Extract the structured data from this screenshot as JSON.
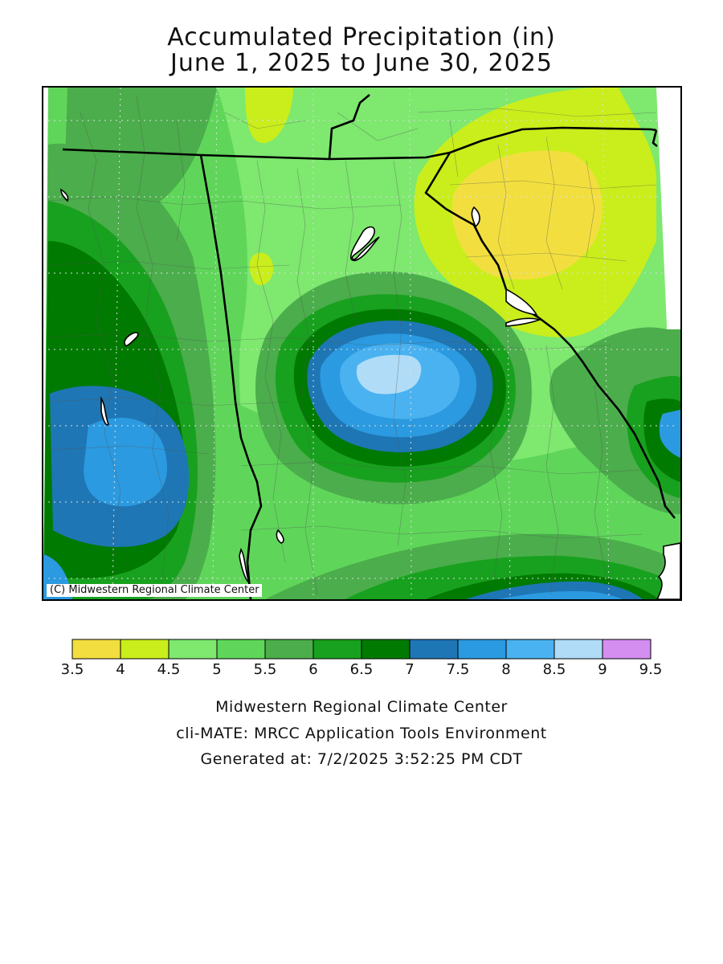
{
  "title": {
    "line1": "Accumulated Precipitation (in)",
    "line2": "June 1, 2025 to June 30, 2025"
  },
  "map": {
    "credit": "(C) Midwestern Regional Climate Center",
    "units": "in"
  },
  "legend": {
    "ticks": [
      "3.5",
      "4",
      "4.5",
      "5",
      "5.5",
      "6",
      "6.5",
      "7",
      "7.5",
      "8",
      "8.5",
      "9",
      "9.5"
    ],
    "bins": [
      {
        "from": 3.5,
        "to": 4.0,
        "color": "#f2df3f"
      },
      {
        "from": 4.0,
        "to": 4.5,
        "color": "#c9ee1c"
      },
      {
        "from": 4.5,
        "to": 5.0,
        "color": "#7ee86f"
      },
      {
        "from": 5.0,
        "to": 5.5,
        "color": "#5fd65a"
      },
      {
        "from": 5.5,
        "to": 6.0,
        "color": "#4bad4b"
      },
      {
        "from": 6.0,
        "to": 6.5,
        "color": "#18a11e"
      },
      {
        "from": 6.5,
        "to": 7.0,
        "color": "#007a00"
      },
      {
        "from": 7.0,
        "to": 7.5,
        "color": "#1f76b4"
      },
      {
        "from": 7.5,
        "to": 8.0,
        "color": "#2b9ae0"
      },
      {
        "from": 8.0,
        "to": 8.5,
        "color": "#4ab2f0"
      },
      {
        "from": 8.5,
        "to": 9.0,
        "color": "#b0dcf7"
      },
      {
        "from": 9.0,
        "to": 9.5,
        "color": "#d38ef0"
      }
    ]
  },
  "footer": {
    "line1": "Midwestern Regional Climate Center",
    "line2": "cli-MATE: MRCC Application Tools Environment",
    "line3": "Generated at: 7/2/2025 3:52:25 PM CDT"
  }
}
